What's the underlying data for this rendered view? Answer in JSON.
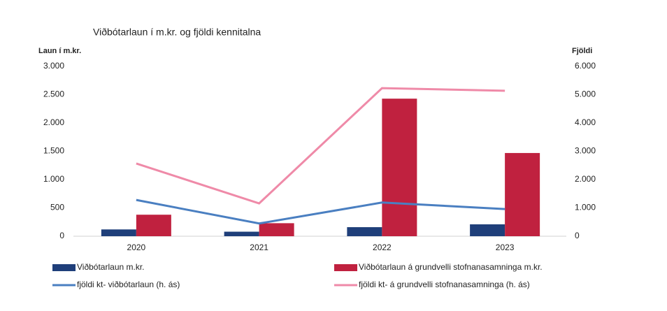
{
  "chart_data": {
    "type": "bar",
    "title": "Viðbótarlaun í m.kr. og fjöldi kennitalna",
    "ylabel": "Laun í m.kr.",
    "y2label": "Fjöldi",
    "categories": [
      "2020",
      "2021",
      "2022",
      "2023"
    ],
    "ylim": [
      0,
      3000
    ],
    "yticks": [
      0,
      500,
      {
        "value": 1000,
        "label": "1.000"
      },
      {
        "value": 1500,
        "label": "1.500"
      },
      {
        "value": 2000,
        "label": "2.000"
      },
      {
        "value": 2500,
        "label": "2.500"
      },
      {
        "value": 3000,
        "label": "3.000"
      }
    ],
    "y2lim": [
      0,
      6000
    ],
    "y2ticks": [
      0,
      {
        "value": 1000,
        "label": "1.000"
      },
      {
        "value": 2000,
        "label": "2.000"
      },
      {
        "value": 3000,
        "label": "3.000"
      },
      {
        "value": 4000,
        "label": "4.000"
      },
      {
        "value": 5000,
        "label": "5.000"
      },
      {
        "value": 6000,
        "label": "6.000"
      }
    ],
    "legend": "bottom",
    "series": [
      {
        "name": "Viðbótarlaun m.kr.",
        "type": "bar",
        "color": "#1f3f7a",
        "values": [
          120,
          80,
          160,
          210
        ]
      },
      {
        "name": "Viðbótarlaun á grundvelli stofnanasamninga m.kr.",
        "type": "bar",
        "color": "#c0213f",
        "values": [
          380,
          230,
          2430,
          1470
        ]
      },
      {
        "name": "fjöldi kt- viðbótarlaun (h. ás)",
        "type": "line",
        "axis": "y2",
        "color": "#4a7fc1",
        "values": [
          1280,
          450,
          1190,
          960
        ]
      },
      {
        "name": "fjöldi kt- á grundvelli stofnanasamninga (h. ás)",
        "type": "line",
        "axis": "y2",
        "color": "#ef8aa8",
        "values": [
          2570,
          1160,
          5230,
          5140
        ]
      }
    ]
  }
}
